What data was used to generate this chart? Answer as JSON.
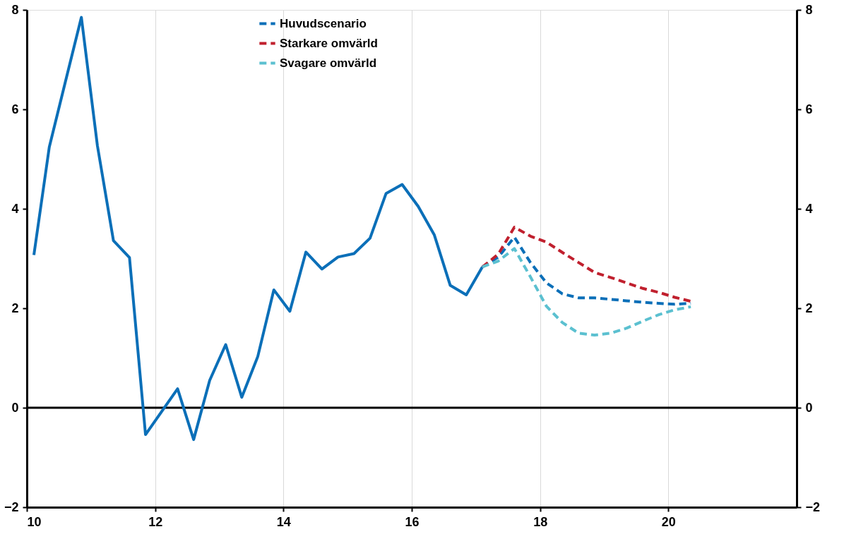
{
  "chart_data": {
    "type": "line",
    "xlim": [
      10,
      22
    ],
    "xticks": [
      10,
      12,
      14,
      16,
      18,
      20
    ],
    "ylim": [
      -2,
      8
    ],
    "yticks": [
      -2,
      0,
      2,
      4,
      6,
      8
    ],
    "y2lim": [
      -2,
      8
    ],
    "y2ticks": [
      -2,
      0,
      2,
      4,
      6,
      8
    ],
    "grid": "x",
    "legend": "top",
    "ref_lines": [
      {
        "axis": "y",
        "value": 0,
        "color": "#000000",
        "line_style": "solid"
      }
    ],
    "series": [
      {
        "color": "#0b6fb8",
        "line_style": "solid",
        "x": [
          10.11,
          10.35,
          10.6,
          10.85,
          11.1,
          11.35,
          11.6,
          11.85,
          12.1,
          12.35,
          12.6,
          12.85,
          13.1,
          13.35,
          13.6,
          13.85,
          14.1,
          14.35,
          14.6,
          14.85,
          15.1,
          15.35,
          15.6,
          15.85,
          16.1,
          16.35,
          16.6,
          16.85,
          17.1
        ],
        "values": [
          3.07,
          5.24,
          6.55,
          7.85,
          5.27,
          3.36,
          3.02,
          -0.54,
          -0.08,
          0.38,
          -0.64,
          0.55,
          1.27,
          0.21,
          1.03,
          2.37,
          1.94,
          3.13,
          2.79,
          3.03,
          3.1,
          3.41,
          4.31,
          4.49,
          4.05,
          3.48,
          2.46,
          2.27,
          2.83
        ]
      },
      {
        "name": "Huvudscenario",
        "color": "#0b6fb8",
        "line_style": "dashed",
        "x": [
          17.1,
          17.35,
          17.6,
          17.85,
          18.1,
          18.35,
          18.6,
          18.85,
          19.1,
          19.35,
          19.6,
          19.85,
          20.1,
          20.35
        ],
        "values": [
          2.83,
          3.03,
          3.43,
          2.92,
          2.51,
          2.29,
          2.21,
          2.21,
          2.18,
          2.15,
          2.12,
          2.1,
          2.08,
          2.1
        ]
      },
      {
        "name": "Starkare omvärld",
        "color": "#c0202e",
        "line_style": "dashed",
        "x": [
          17.1,
          17.35,
          17.6,
          17.85,
          18.1,
          18.35,
          18.6,
          18.85,
          19.1,
          19.35,
          19.6,
          19.85,
          20.1,
          20.35
        ],
        "values": [
          2.83,
          3.09,
          3.63,
          3.45,
          3.33,
          3.12,
          2.92,
          2.72,
          2.62,
          2.51,
          2.4,
          2.32,
          2.22,
          2.14
        ]
      },
      {
        "name": "Svagare omvärld",
        "color": "#5bc0d0",
        "line_style": "dashed",
        "x": [
          17.1,
          17.35,
          17.6,
          17.85,
          18.1,
          18.35,
          18.6,
          18.85,
          19.1,
          19.35,
          19.6,
          19.85,
          20.1,
          20.35
        ],
        "values": [
          2.83,
          2.95,
          3.2,
          2.63,
          2.04,
          1.71,
          1.5,
          1.46,
          1.5,
          1.6,
          1.74,
          1.87,
          1.97,
          2.03
        ]
      }
    ]
  }
}
